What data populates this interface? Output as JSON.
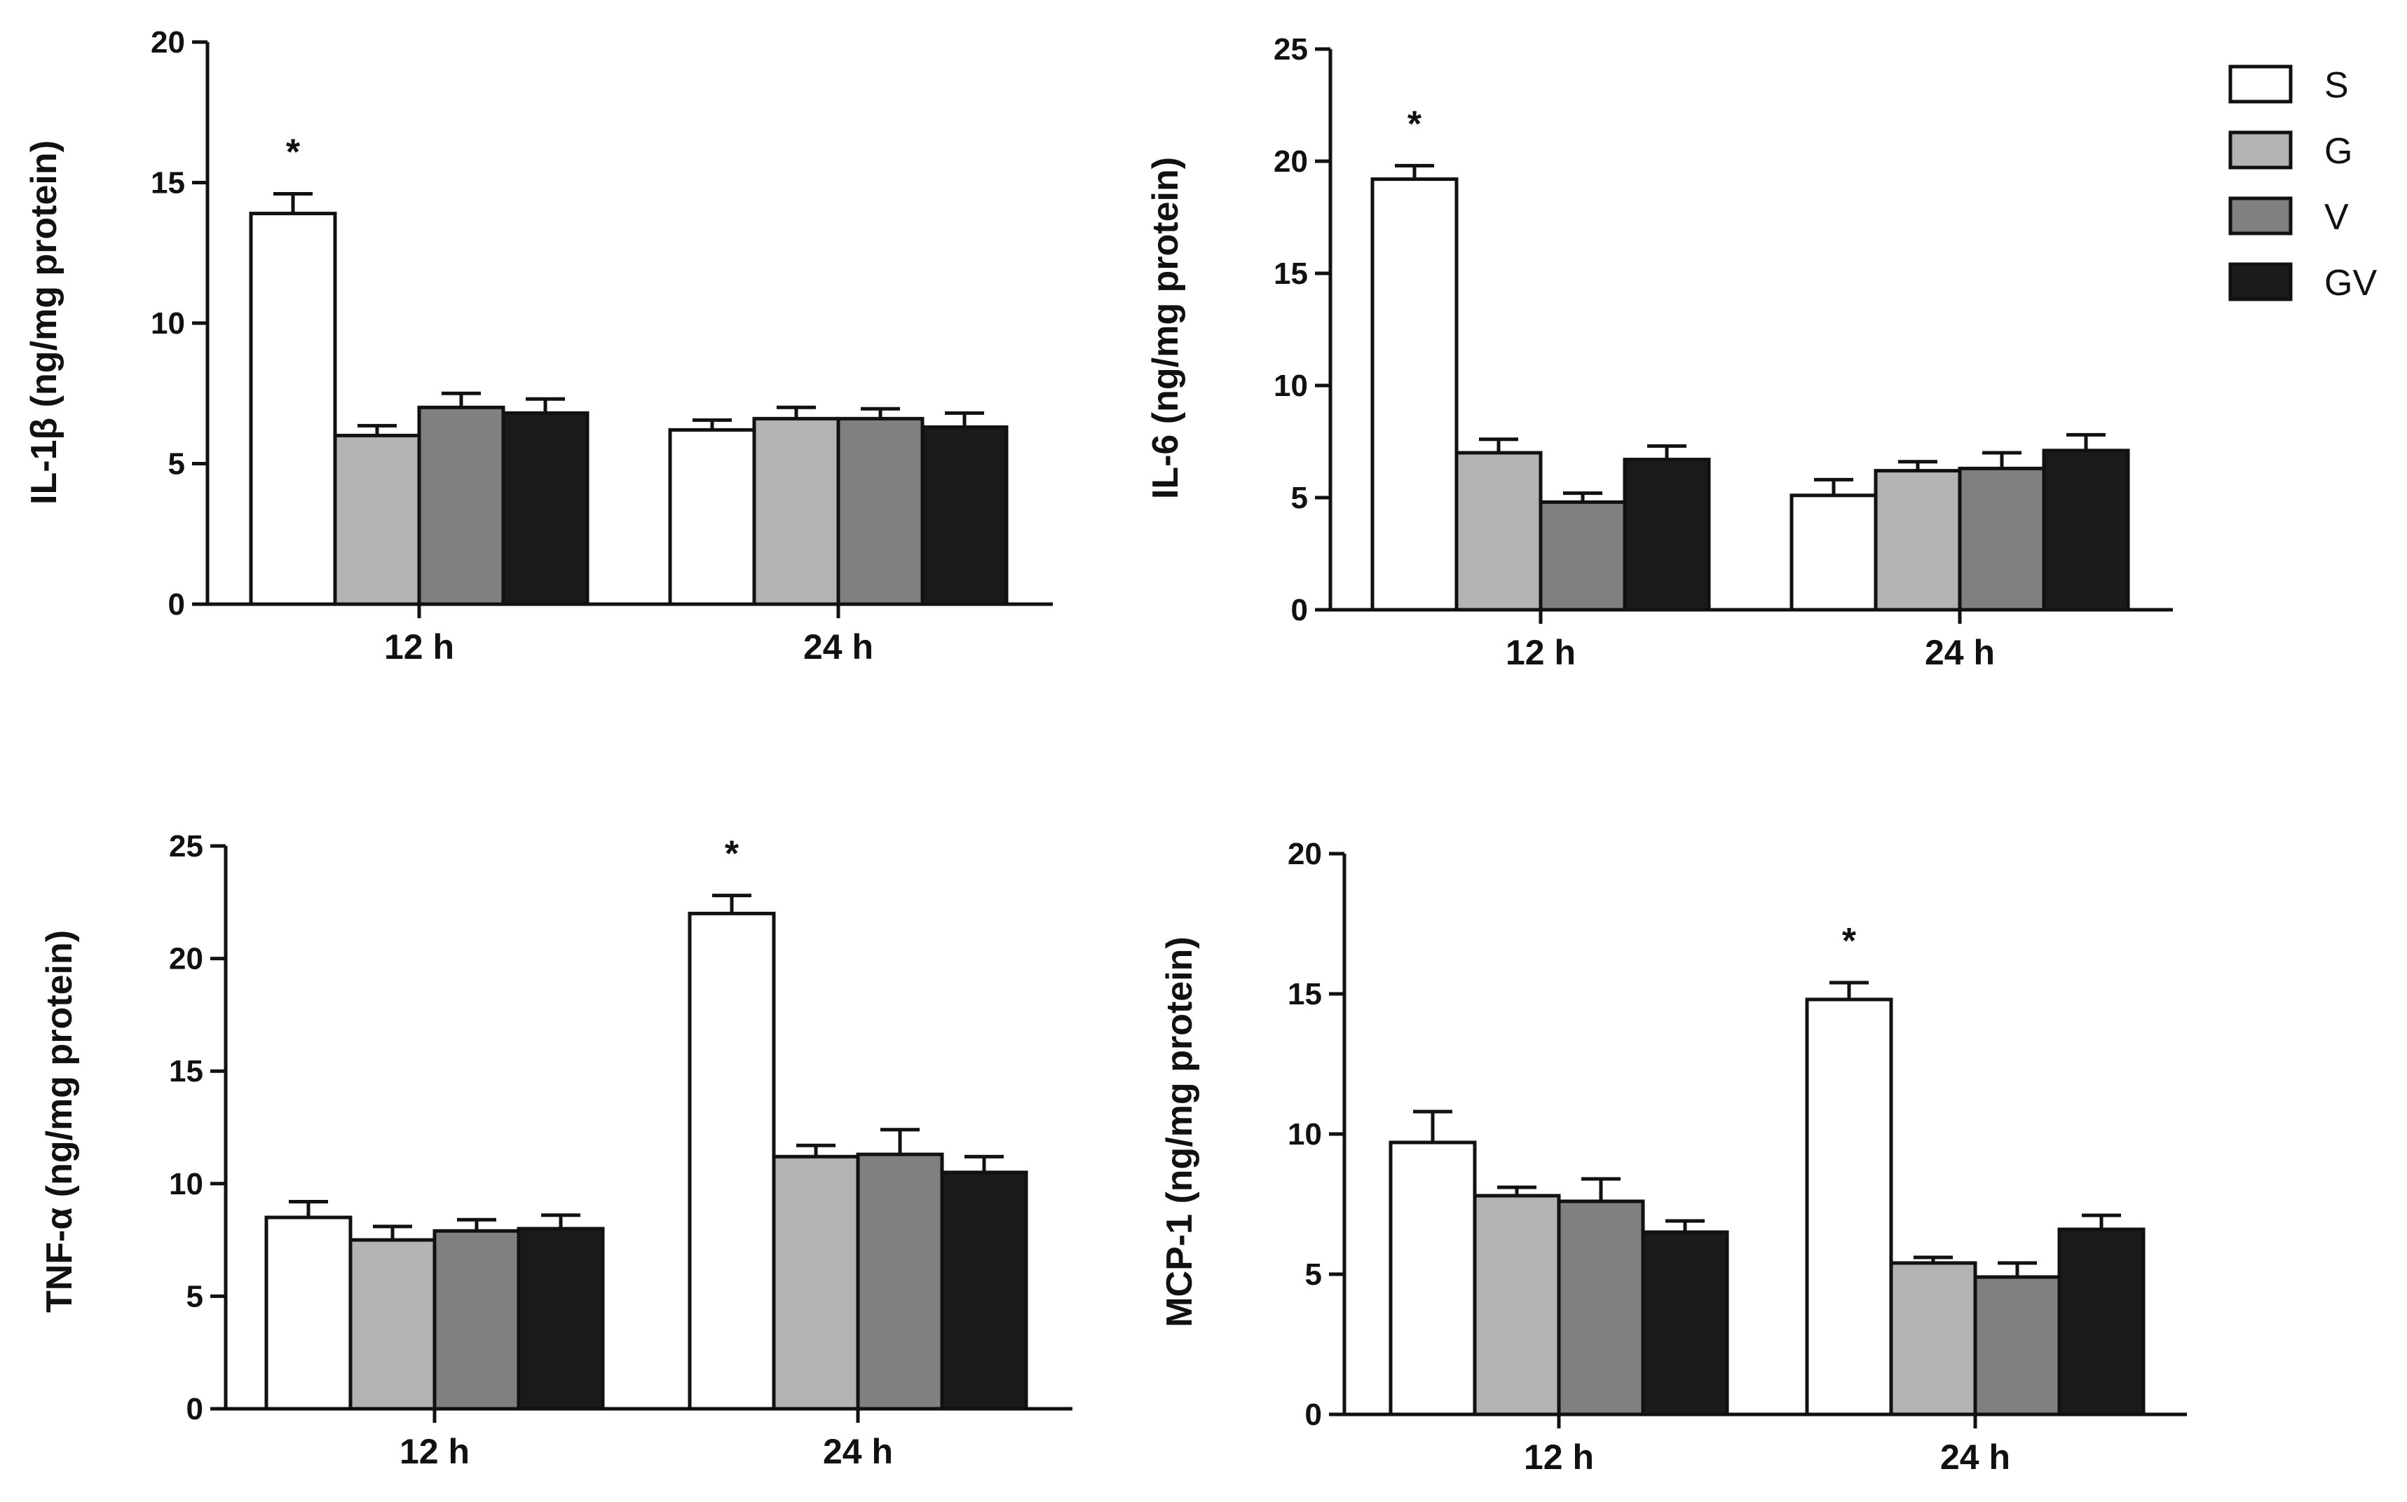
{
  "colors": {
    "S": "#ffffff",
    "G": "#b3b3b3",
    "V": "#808080",
    "GV": "#1a1a1a",
    "axis": "#111111"
  },
  "legend": [
    {
      "key": "S",
      "label": "S"
    },
    {
      "key": "G",
      "label": "G"
    },
    {
      "key": "V",
      "label": "V"
    },
    {
      "key": "GV",
      "label": "GV"
    }
  ],
  "chart_data": [
    {
      "type": "bar",
      "position": "top-left",
      "ylabel": "IL-1β (ng/mg protein)",
      "ylim": [
        0,
        20
      ],
      "yticks": [
        0,
        5,
        10,
        15,
        20
      ],
      "categories": [
        "12 h",
        "24 h"
      ],
      "series": [
        {
          "name": "S",
          "values": [
            13.9,
            6.2
          ],
          "errors": [
            0.7,
            0.35
          ]
        },
        {
          "name": "G",
          "values": [
            6.0,
            6.6
          ],
          "errors": [
            0.35,
            0.4
          ]
        },
        {
          "name": "V",
          "values": [
            7.0,
            6.6
          ],
          "errors": [
            0.5,
            0.35
          ]
        },
        {
          "name": "GV",
          "values": [
            6.8,
            6.3
          ],
          "errors": [
            0.5,
            0.5
          ]
        }
      ],
      "annotations": [
        {
          "text": "*",
          "category": 0,
          "series": "S"
        }
      ]
    },
    {
      "type": "bar",
      "position": "top-right",
      "ylabel": "IL-6 (ng/mg protein)",
      "ylim": [
        0,
        25
      ],
      "yticks": [
        0,
        5,
        10,
        15,
        20,
        25
      ],
      "categories": [
        "12 h",
        "24 h"
      ],
      "series": [
        {
          "name": "S",
          "values": [
            19.2,
            5.1
          ],
          "errors": [
            0.6,
            0.7
          ]
        },
        {
          "name": "G",
          "values": [
            7.0,
            6.2
          ],
          "errors": [
            0.6,
            0.4
          ]
        },
        {
          "name": "V",
          "values": [
            4.8,
            6.3
          ],
          "errors": [
            0.4,
            0.7
          ]
        },
        {
          "name": "GV",
          "values": [
            6.7,
            7.1
          ],
          "errors": [
            0.6,
            0.7
          ]
        }
      ],
      "annotations": [
        {
          "text": "*",
          "category": 0,
          "series": "S"
        }
      ]
    },
    {
      "type": "bar",
      "position": "bottom-left",
      "ylabel": "TNF-α (ng/mg protein)",
      "ylim": [
        0,
        25
      ],
      "yticks": [
        0,
        5,
        10,
        15,
        20,
        25
      ],
      "categories": [
        "12 h",
        "24 h"
      ],
      "series": [
        {
          "name": "S",
          "values": [
            8.5,
            22.0
          ],
          "errors": [
            0.7,
            0.8
          ]
        },
        {
          "name": "G",
          "values": [
            7.5,
            11.2
          ],
          "errors": [
            0.6,
            0.5
          ]
        },
        {
          "name": "V",
          "values": [
            7.9,
            11.3
          ],
          "errors": [
            0.5,
            1.1
          ]
        },
        {
          "name": "GV",
          "values": [
            8.0,
            10.5
          ],
          "errors": [
            0.6,
            0.7
          ]
        }
      ],
      "annotations": [
        {
          "text": "*",
          "category": 1,
          "series": "S"
        }
      ]
    },
    {
      "type": "bar",
      "position": "bottom-right",
      "ylabel": "MCP-1 (ng/mg protein)",
      "ylim": [
        0,
        20
      ],
      "yticks": [
        0,
        5,
        10,
        15,
        20
      ],
      "categories": [
        "12 h",
        "24 h"
      ],
      "series": [
        {
          "name": "S",
          "values": [
            9.7,
            14.8
          ],
          "errors": [
            1.1,
            0.6
          ]
        },
        {
          "name": "G",
          "values": [
            7.8,
            5.4
          ],
          "errors": [
            0.3,
            0.2
          ]
        },
        {
          "name": "V",
          "values": [
            7.6,
            4.9
          ],
          "errors": [
            0.8,
            0.5
          ]
        },
        {
          "name": "GV",
          "values": [
            6.5,
            6.6
          ],
          "errors": [
            0.4,
            0.5
          ]
        }
      ],
      "annotations": [
        {
          "text": "*",
          "category": 1,
          "series": "S"
        }
      ]
    }
  ]
}
